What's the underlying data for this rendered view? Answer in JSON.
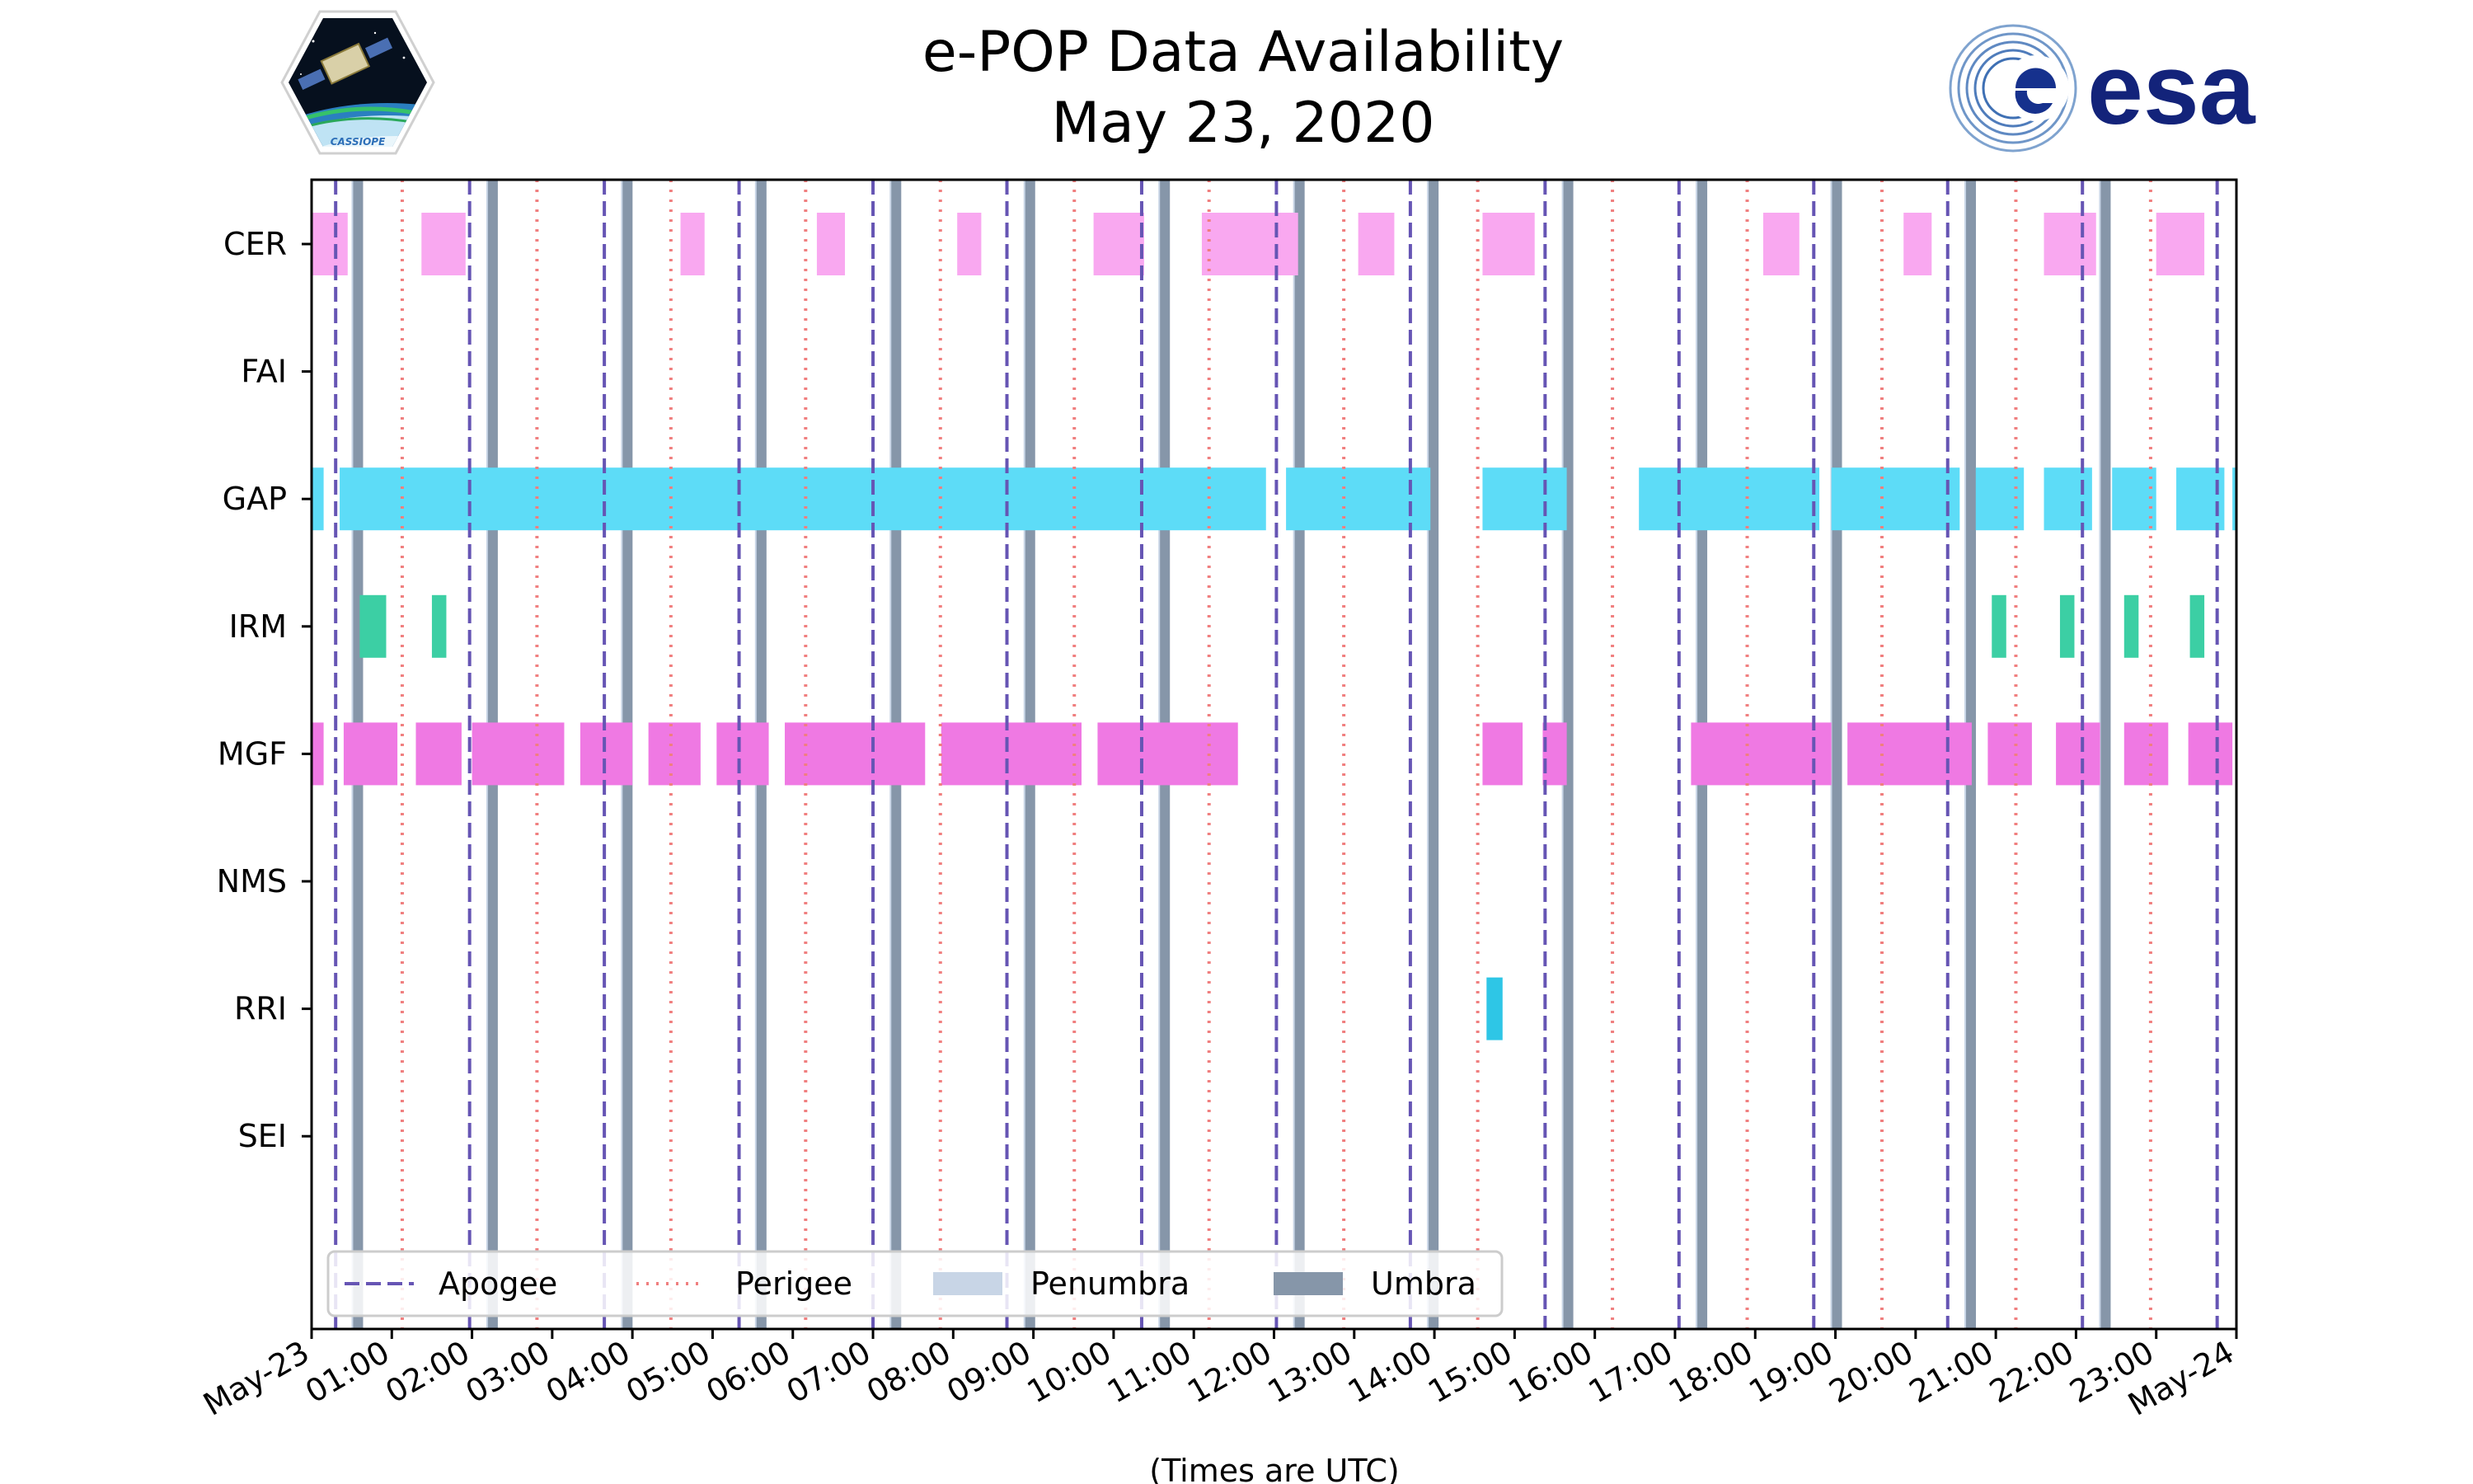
{
  "chart_data": {
    "type": "timeline",
    "title": [
      "e-POP Data Availability",
      "May 23, 2020"
    ],
    "xlabel": "(Times are UTC)",
    "x_range_hours": [
      0,
      24
    ],
    "x_ticks": [
      "May-23",
      "01:00",
      "02:00",
      "03:00",
      "04:00",
      "05:00",
      "06:00",
      "07:00",
      "08:00",
      "09:00",
      "10:00",
      "11:00",
      "12:00",
      "13:00",
      "14:00",
      "15:00",
      "16:00",
      "17:00",
      "18:00",
      "19:00",
      "20:00",
      "21:00",
      "22:00",
      "23:00",
      "May-24"
    ],
    "instruments": [
      "CER",
      "FAI",
      "GAP",
      "IRM",
      "MGF",
      "NMS",
      "RRI",
      "SEI"
    ],
    "colors": {
      "CER": "#f9a8f0",
      "GAP": "#5ddcf7",
      "IRM": "#3ccfa4",
      "MGF": "#ef79e3",
      "RRI": "#2ec6e6",
      "apogee": "#6655b4",
      "perigee": "#f07f7f",
      "penumbra": "#c8d5e6",
      "umbra": "#8696a9"
    },
    "series": {
      "CER": [
        [
          0,
          0.45
        ],
        [
          1.37,
          1.92
        ],
        [
          4.6,
          4.9
        ],
        [
          6.3,
          6.65
        ],
        [
          8.05,
          8.35
        ],
        [
          9.75,
          10.38
        ],
        [
          11.1,
          12.3
        ],
        [
          13.05,
          13.5
        ],
        [
          14.6,
          15.25
        ],
        [
          18.1,
          18.55
        ],
        [
          19.85,
          20.2
        ],
        [
          21.6,
          22.25
        ],
        [
          23.0,
          23.6
        ]
      ],
      "FAI": [],
      "GAP": [
        [
          0,
          0.15
        ],
        [
          0.35,
          11.9
        ],
        [
          12.15,
          13.95
        ],
        [
          14.6,
          15.65
        ],
        [
          16.55,
          18.8
        ],
        [
          18.95,
          20.55
        ],
        [
          20.75,
          21.35
        ],
        [
          21.6,
          22.2
        ],
        [
          22.45,
          23.0
        ],
        [
          23.25,
          23.85
        ],
        [
          23.95,
          24.0
        ]
      ],
      "IRM": [
        [
          0.6,
          0.93
        ],
        [
          1.5,
          1.68
        ],
        [
          20.95,
          21.13
        ],
        [
          21.8,
          21.98
        ],
        [
          22.6,
          22.78
        ],
        [
          23.42,
          23.6
        ]
      ],
      "MGF": [
        [
          0,
          0.15
        ],
        [
          0.4,
          1.07
        ],
        [
          1.3,
          1.87
        ],
        [
          2.0,
          3.15
        ],
        [
          3.35,
          4.0
        ],
        [
          4.2,
          4.85
        ],
        [
          5.05,
          5.7
        ],
        [
          5.9,
          7.65
        ],
        [
          7.85,
          9.6
        ],
        [
          9.8,
          11.55
        ],
        [
          14.6,
          15.1
        ],
        [
          15.35,
          15.65
        ],
        [
          17.2,
          18.95
        ],
        [
          19.15,
          20.7
        ],
        [
          20.9,
          21.45
        ],
        [
          21.75,
          22.3
        ],
        [
          22.6,
          23.15
        ],
        [
          23.4,
          23.95
        ]
      ],
      "NMS": [],
      "RRI": [
        [
          14.65,
          14.85
        ]
      ],
      "SEI": []
    },
    "apogee": [
      0.3,
      1.97,
      3.65,
      5.33,
      7.0,
      8.67,
      10.35,
      12.03,
      13.7,
      15.38,
      17.05,
      18.73,
      20.4,
      22.08,
      23.76
    ],
    "perigee": [
      1.13,
      2.81,
      4.48,
      6.16,
      7.84,
      9.51,
      11.19,
      12.87,
      14.54,
      16.22,
      17.9,
      19.58,
      21.25,
      22.93
    ],
    "umbra": [
      0.57,
      2.25,
      3.93,
      5.6,
      7.28,
      8.95,
      10.63,
      12.31,
      13.98,
      15.66,
      17.33,
      19.01,
      20.68,
      22.36
    ],
    "legend": [
      "Apogee",
      "Perigee",
      "Penumbra",
      "Umbra"
    ],
    "legend_position": "lower-left"
  }
}
